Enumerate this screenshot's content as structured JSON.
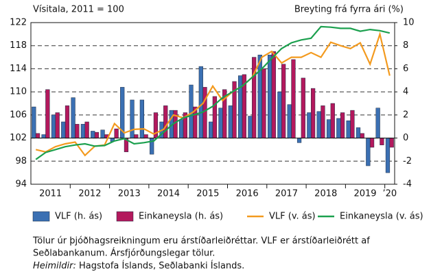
{
  "chart_data": {
    "type": "bar-line",
    "y_axis_label": "Vísitala, 2011 = 100",
    "y2_axis_label": "Breyting frá fyrra ári (%)",
    "categories": [
      "2011",
      null,
      null,
      null,
      "2012",
      null,
      null,
      null,
      "2013",
      null,
      null,
      null,
      "2014",
      null,
      null,
      null,
      "2015",
      null,
      null,
      null,
      "2016",
      null,
      null,
      null,
      "2017",
      null,
      null,
      null,
      "2018",
      null,
      null,
      null,
      "2019",
      null,
      null,
      null,
      "’20"
    ],
    "ylim": [
      94,
      122
    ],
    "yticks": [
      94,
      98,
      102,
      106,
      110,
      114,
      118,
      122
    ],
    "y2lim": [
      -4,
      10
    ],
    "y2ticks": [
      -4,
      -2,
      0,
      2,
      4,
      6,
      8,
      10
    ],
    "grid": true,
    "series": [
      {
        "name": "VLF (h. ás)",
        "kind": "bar",
        "axis": "y2",
        "color": "#3b70b3",
        "values": [
          2.7,
          0.3,
          2.0,
          1.4,
          3.5,
          1.2,
          0.6,
          0.7,
          -0.3,
          4.4,
          3.3,
          3.3,
          -1.4,
          1.4,
          2.4,
          1.6,
          4.6,
          6.2,
          1.4,
          2.6,
          2.8,
          5.4,
          1.9,
          7.2,
          7.2,
          4.0,
          2.9,
          -0.4,
          2.2,
          2.3,
          1.6,
          1.7,
          1.5,
          0.9,
          -2.4,
          2.6,
          -3.0
        ]
      },
      {
        "name": "Einkaneysla (h. ás)",
        "kind": "bar",
        "axis": "y2",
        "color": "#b3195d",
        "values": [
          0.4,
          4.2,
          2.2,
          2.8,
          1.2,
          1.4,
          0.5,
          0.3,
          0.8,
          -1.2,
          0.3,
          0.3,
          2.2,
          2.8,
          2.4,
          2.2,
          2.7,
          4.4,
          3.6,
          4.2,
          4.9,
          5.5,
          7.0,
          6.0,
          7.5,
          6.4,
          6.8,
          5.2,
          4.3,
          2.8,
          3.0,
          2.2,
          2.4,
          0.4,
          -0.8,
          -0.6,
          -0.8
        ]
      },
      {
        "name": "VLF (v. ás)",
        "kind": "line",
        "color": "#f39a1e",
        "values": [
          100.0,
          99.6,
          100.5,
          101.0,
          101.3,
          99.0,
          100.6,
          100.8,
          104.5,
          102.9,
          103.5,
          103.6,
          102.7,
          103.5,
          106.0,
          105.5,
          106.5,
          108.0,
          111.0,
          108.5,
          110.0,
          111.0,
          112.5,
          116.0,
          117.0,
          115.0,
          116.0,
          116.0,
          116.8,
          116.0,
          118.6,
          118.0,
          117.5,
          118.5,
          114.8,
          120.0,
          112.8
        ]
      },
      {
        "name": "Einkaneysla (v. ás)",
        "kind": "line",
        "color": "#1ba04e",
        "values": [
          98.3,
          99.5,
          100.0,
          100.5,
          100.8,
          101.0,
          100.6,
          100.7,
          101.5,
          101.9,
          101.0,
          101.2,
          101.5,
          103.0,
          104.5,
          105.5,
          106.0,
          106.5,
          107.5,
          109.0,
          110.0,
          111.0,
          112.5,
          114.0,
          115.8,
          117.5,
          118.5,
          119.0,
          119.3,
          121.3,
          121.2,
          121.0,
          121.0,
          120.5,
          120.8,
          120.6,
          120.2
        ]
      }
    ],
    "notes": [
      "Tölur úr þjóðhagsreikningum eru árstíðarleiðréttar. VLF er árstíðarleiðrétt af",
      "Seðlabankanum. Ársfjórðungslegar tölur."
    ],
    "source_label": "Heimildir:",
    "source": "Hagstofa Íslands, Seðlabanki Íslands."
  }
}
